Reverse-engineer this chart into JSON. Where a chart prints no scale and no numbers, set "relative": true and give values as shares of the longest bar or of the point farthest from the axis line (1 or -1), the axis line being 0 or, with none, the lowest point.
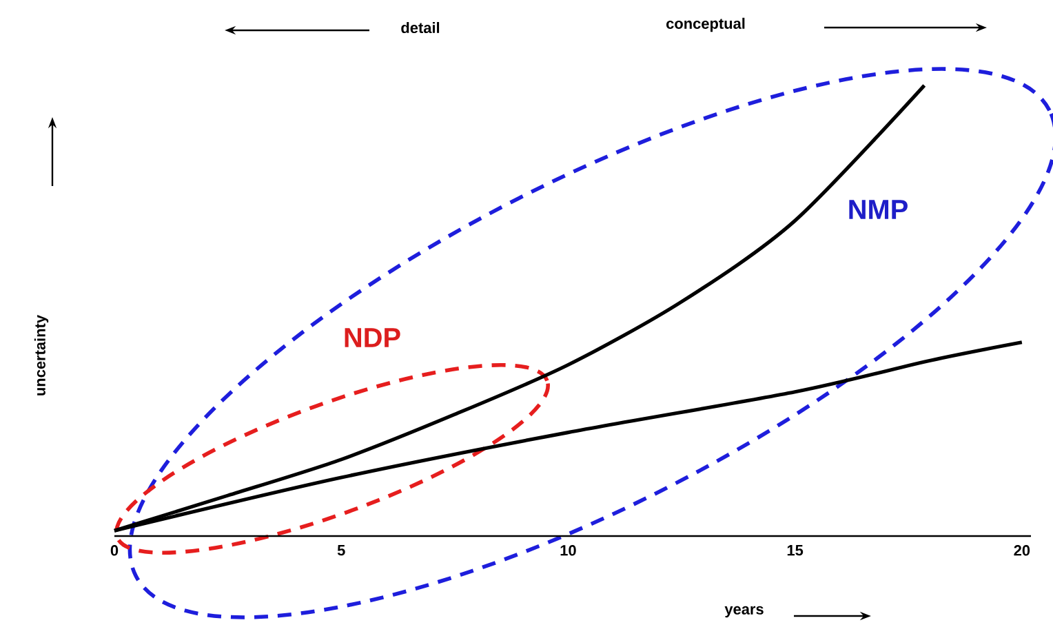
{
  "chart_data": {
    "type": "line",
    "relative": true,
    "xlabel": "years",
    "ylabel": "uncertainty",
    "annotations": [
      "detail",
      "conceptual",
      "NDP",
      "NMP"
    ],
    "xlim": [
      0,
      20.2
    ],
    "xticks": [
      0,
      5,
      10,
      15,
      20
    ],
    "tick_labels": "x",
    "grid": false,
    "line_style": "solid",
    "marker": "none",
    "series": [
      {
        "color": "#000000",
        "x": [
          0,
          2.5,
          5,
          7.5,
          10,
          12.5,
          15,
          17.85
        ],
        "values": [
          0.012,
          0.09,
          0.17,
          0.27,
          0.38,
          0.52,
          0.7,
          1.0
        ]
      },
      {
        "color": "#000000",
        "x": [
          0,
          5,
          10,
          15,
          18,
          20
        ],
        "values": [
          0.012,
          0.13,
          0.23,
          0.32,
          0.39,
          0.43
        ]
      }
    ]
  }
}
